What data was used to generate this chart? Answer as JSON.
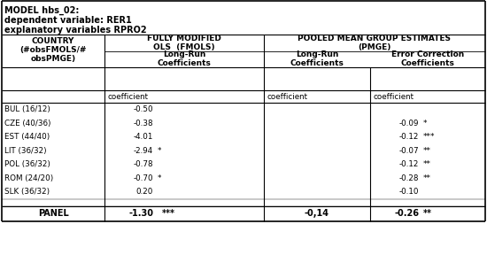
{
  "title_lines": [
    "MODEL hbs_02:",
    "dependent variable: RER1",
    "explanatory variables RPRO2"
  ],
  "countries": [
    "BUL (16/12)",
    "CZE (40/36)",
    "EST (44/40)",
    "LIT (36/32)",
    "POL (36/32)",
    "ROM (24/20)",
    "SLK (36/32)"
  ],
  "fmols_coeff": [
    "-0.50",
    "-0.38",
    "-4.01",
    "-2.94",
    "-0.78",
    "-0.70",
    "0.20"
  ],
  "fmols_sig": [
    "",
    "",
    "",
    "*",
    "",
    "*",
    ""
  ],
  "pmge_lr_coeff": [
    "",
    "",
    "",
    "",
    "",
    "",
    ""
  ],
  "pmge_ec_coeff": [
    "",
    "-0.09",
    "-0.12",
    "-0.07",
    "-0.12",
    "-0.28",
    "-0.10"
  ],
  "pmge_ec_sig": [
    "",
    "*",
    "***",
    "**",
    "**",
    "**",
    ""
  ],
  "panel_fmols_coeff": "-1.30",
  "panel_fmols_sig": "***",
  "panel_pmge_lr_coeff": "-0,14",
  "panel_pmge_ec_coeff": "-0.26",
  "panel_pmge_ec_sig": "**",
  "bg_color": "#ffffff",
  "text_color": "#000000"
}
